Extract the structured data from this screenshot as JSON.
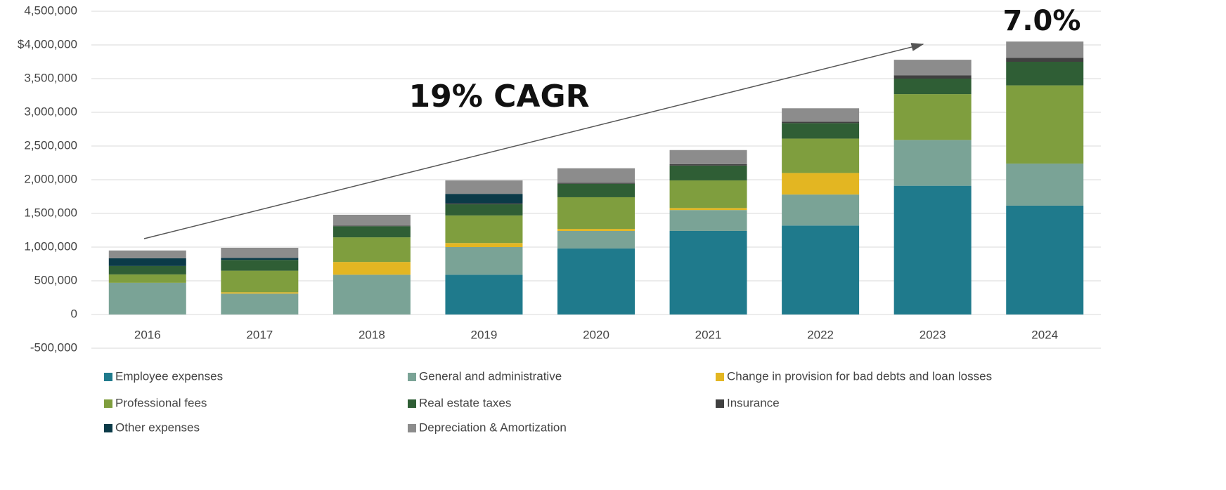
{
  "chart_data": {
    "type": "stacked_bar",
    "categories": [
      "2016",
      "2017",
      "2018",
      "2019",
      "2020",
      "2021",
      "2022",
      "2023",
      "2024"
    ],
    "series": [
      {
        "name": "Employee expenses",
        "color": "#1f7a8c",
        "values": [
          0,
          0,
          0,
          590000,
          980000,
          1240000,
          1320000,
          1910000,
          1615000
        ]
      },
      {
        "name": "General and administrative",
        "color": "#7aa396",
        "values": [
          470000,
          310000,
          590000,
          410000,
          260000,
          310000,
          460000,
          680000,
          625000
        ]
      },
      {
        "name": "Change in provision for bad debts and loan losses",
        "color": "#e3b622",
        "values": [
          0,
          20000,
          190000,
          60000,
          30000,
          30000,
          320000,
          0,
          0
        ]
      },
      {
        "name": "Professional fees",
        "color": "#7f9e3e",
        "values": [
          125000,
          320000,
          365000,
          410000,
          470000,
          410000,
          510000,
          680000,
          1160000
        ]
      },
      {
        "name": "Real estate taxes",
        "color": "#2f5e35",
        "values": [
          125000,
          160000,
          165000,
          165000,
          200000,
          220000,
          230000,
          230000,
          350000
        ]
      },
      {
        "name": "Insurance",
        "color": "#404040",
        "values": [
          0,
          0,
          10000,
          15000,
          15000,
          20000,
          20000,
          50000,
          60000
        ]
      },
      {
        "name": "Other expenses",
        "color": "#0b3a48",
        "values": [
          115000,
          30000,
          0,
          140000,
          0,
          0,
          0,
          0,
          0
        ]
      },
      {
        "name": "Depreciation & Amortization",
        "color": "#8c8c8c",
        "values": [
          115000,
          150000,
          160000,
          200000,
          215000,
          210000,
          200000,
          230000,
          240000
        ]
      }
    ],
    "ylim": [
      -500000,
      4500000
    ],
    "yticks": [
      {
        "value": -500000,
        "label": "-500,000"
      },
      0,
      {
        "value": 500000,
        "label": "500,000"
      },
      {
        "value": 1000000,
        "label": "1,000,000"
      },
      {
        "value": 1500000,
        "label": "1,500,000"
      },
      {
        "value": 2000000,
        "label": "2,000,000"
      },
      {
        "value": 2500000,
        "label": "2,500,000"
      },
      {
        "value": 3000000,
        "label": "3,000,000"
      },
      {
        "value": 3500000,
        "label": "3,500,000"
      },
      {
        "value": 4000000,
        "label": "$4,000,000"
      },
      {
        "value": 4500000,
        "label": "4,500,000"
      }
    ],
    "grid": true,
    "annotations": [
      "19% CAGR",
      "7.0%"
    ]
  }
}
